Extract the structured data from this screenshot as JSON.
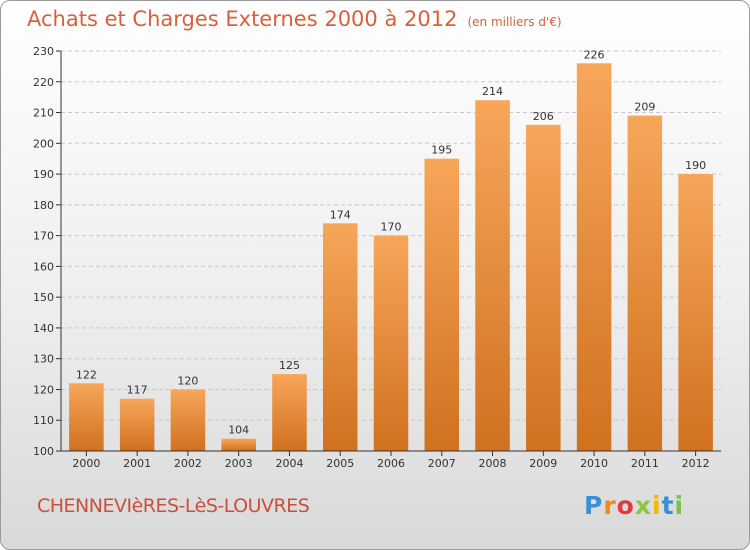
{
  "title": "Achats et Charges Externes 2000 à 2012",
  "unit": "(en milliers d'€)",
  "place": "CHENNEVIèRES-LèS-LOUVRES",
  "logo": [
    "P",
    "r",
    "o",
    "x",
    "i",
    "t",
    "i"
  ],
  "colors": {
    "bar_top": "#f7a65a",
    "bar_bottom": "#d0711f",
    "grid": "#c8c8c8",
    "axis": "#333333",
    "title": "#d9603b"
  },
  "chart_data": {
    "type": "bar",
    "categories": [
      "2000",
      "2001",
      "2002",
      "2003",
      "2004",
      "2005",
      "2006",
      "2007",
      "2008",
      "2009",
      "2010",
      "2011",
      "2012"
    ],
    "values": [
      122,
      117,
      120,
      104,
      125,
      174,
      170,
      195,
      214,
      206,
      226,
      209,
      190
    ],
    "ylim": [
      100,
      230
    ],
    "yticks": [
      100,
      110,
      120,
      130,
      140,
      150,
      160,
      170,
      180,
      190,
      200,
      210,
      220,
      230
    ],
    "grid": true
  }
}
